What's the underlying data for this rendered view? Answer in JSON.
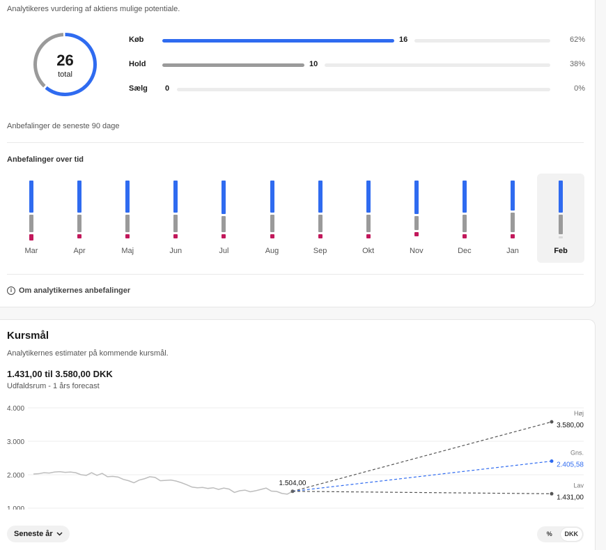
{
  "analyst": {
    "intro": "Analytikeres vurdering af aktiens mulige potentiale.",
    "total": "26",
    "total_label": "total",
    "ratings": [
      {
        "label": "Køb",
        "count": "16",
        "pct": "62%",
        "share": 0.62,
        "color": "#2f6bf0"
      },
      {
        "label": "Hold",
        "count": "10",
        "pct": "38%",
        "share": 0.38,
        "color": "#9a9a9a"
      },
      {
        "label": "Sælg",
        "count": "0",
        "pct": "0%",
        "share": 0,
        "color": "#c2185b"
      }
    ],
    "last90": "Anbefalinger de seneste 90 dage",
    "over_time_title": "Anbefalinger over tid",
    "about_link": "Om analytikernes anbefalinger"
  },
  "months": [
    {
      "label": "Mar",
      "buy": 16,
      "hold": 9,
      "sell": 3
    },
    {
      "label": "Apr",
      "buy": 16,
      "hold": 9,
      "sell": 2
    },
    {
      "label": "Maj",
      "buy": 16,
      "hold": 9,
      "sell": 2
    },
    {
      "label": "Jun",
      "buy": 16,
      "hold": 9,
      "sell": 2
    },
    {
      "label": "Jul",
      "buy": 17,
      "hold": 8,
      "sell": 2
    },
    {
      "label": "Aug",
      "buy": 16,
      "hold": 9,
      "sell": 2
    },
    {
      "label": "Sep",
      "buy": 16,
      "hold": 9,
      "sell": 2
    },
    {
      "label": "Okt",
      "buy": 16,
      "hold": 9,
      "sell": 2
    },
    {
      "label": "Nov",
      "buy": 17,
      "hold": 7,
      "sell": 2
    },
    {
      "label": "Dec",
      "buy": 16,
      "hold": 9,
      "sell": 2
    },
    {
      "label": "Jan",
      "buy": 15,
      "hold": 10,
      "sell": 2
    },
    {
      "label": "Feb",
      "buy": 16,
      "hold": 10,
      "sell": 0,
      "selected": true
    }
  ],
  "kursmaal": {
    "title": "Kursmål",
    "subtitle": "Analytikernes estimater på kommende kursmål.",
    "range": "1.431,00 til 3.580,00 DKK",
    "range_sub": "Udfaldsrum - 1 års forecast",
    "period_button": "Seneste år",
    "toggle": [
      "%",
      "DKK"
    ],
    "toggle_active": "DKK"
  },
  "chart_data": {
    "type": "line",
    "y_ticks": [
      "4.000",
      "3.000",
      "2.000",
      "1.000"
    ],
    "ylim": [
      1000,
      4000
    ],
    "history": [
      2020,
      2030,
      2060,
      2050,
      2080,
      2090,
      2070,
      2080,
      2060,
      2000,
      1980,
      2060,
      1980,
      2040,
      1940,
      1950,
      1930,
      1860,
      1820,
      1760,
      1840,
      1880,
      1940,
      1920,
      1820,
      1830,
      1840,
      1810,
      1760,
      1700,
      1630,
      1610,
      1620,
      1590,
      1610,
      1560,
      1600,
      1570,
      1470,
      1520,
      1540,
      1490,
      1520,
      1560,
      1600,
      1510,
      1500,
      1440,
      1420,
      1500
    ],
    "current": {
      "label": "1.504,00",
      "value": 1504
    },
    "targets": [
      {
        "name": "Høj",
        "value": 3580,
        "label": "3.580,00",
        "color": "#555555"
      },
      {
        "name": "Gns.",
        "value": 2405.58,
        "label": "2.405,58",
        "color": "#2f6bf0"
      },
      {
        "name": "Lav",
        "value": 1431,
        "label": "1.431,00",
        "color": "#555555"
      }
    ]
  }
}
